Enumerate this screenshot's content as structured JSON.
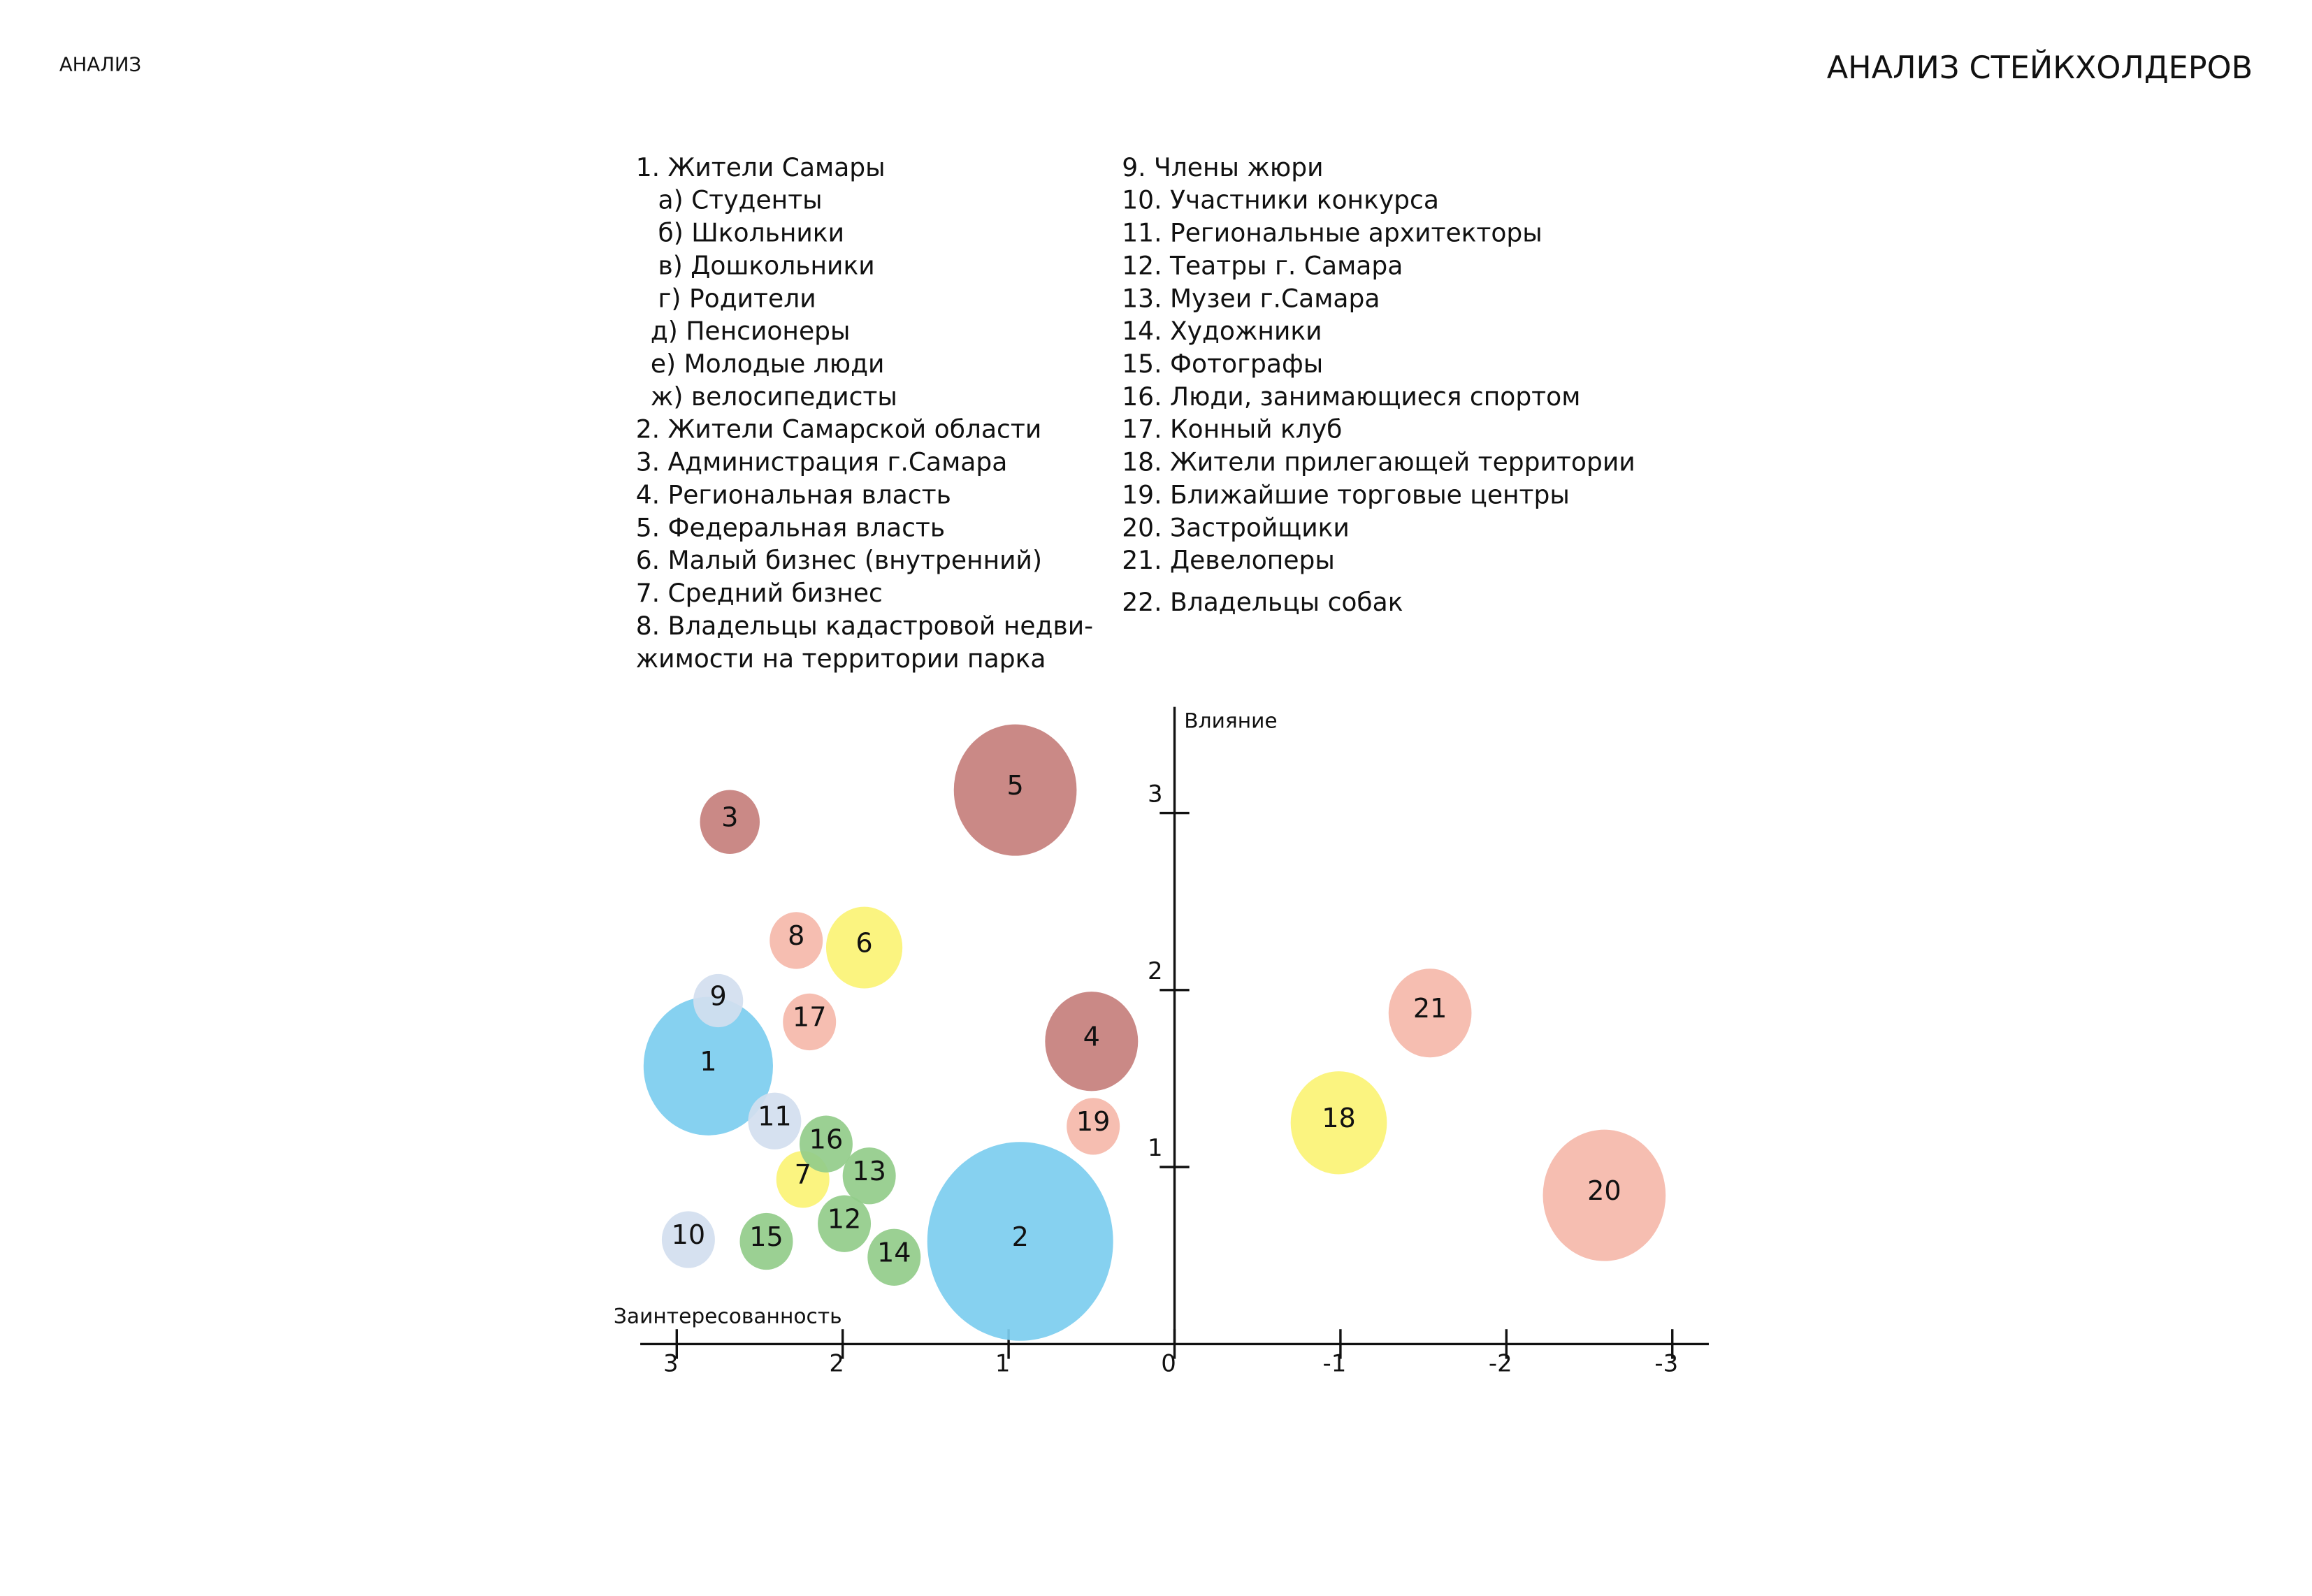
{
  "header": {
    "left": "АНАЛИЗ",
    "right": "АНАЛИЗ СТЕЙКХОЛДЕРОВ"
  },
  "notes": {
    "column1": [
      "1. Жители Самары",
      "а) Студенты",
      "б) Школьники",
      "в) Дошкольники",
      "г) Родители",
      "д) Пенсионеры",
      "е) Молодые люди",
      "ж) велосипедисты",
      "2. Жители Самарской области",
      "3. Администрация г.Самара",
      "4. Региональная власть",
      "5. Федеральная власть",
      "6. Малый бизнес (внутренний)",
      "7. Средний бизнес",
      "8. Владельцы кадастровой недви-",
      "жимости на территории парка"
    ],
    "column2": [
      "9. Члены жюри",
      "10. Участники конкурса",
      "11. Региональные архитекторы",
      "12. Театры г. Самара",
      "13. Музеи г.Самара",
      "14. Художники",
      "15. Фотографы",
      "16. Люди, занимающиеся спортом",
      "17. Конный клуб",
      "18. Жители прилегающей территории",
      "19. Ближайшие торговые центры",
      "20. Застройщики",
      "21. Девелоперы",
      "22. Владельцы собак"
    ]
  },
  "chart_data": {
    "type": "bubble",
    "x_label": "Заинтересованность",
    "y_label": "Влияние",
    "xlim": [
      3.22,
      -3.22
    ],
    "ylim": [
      0,
      3.6
    ],
    "xticks": [
      3,
      2,
      1,
      0,
      -1,
      -2,
      -3
    ],
    "yticks": [
      1,
      2,
      3
    ],
    "points": [
      {
        "label": "1",
        "x": 2.81,
        "y": 1.57,
        "size": 0.39,
        "color": "#7ccdef"
      },
      {
        "label": "2",
        "x": 0.93,
        "y": 0.58,
        "size": 0.56,
        "color": "#7ccdef"
      },
      {
        "label": "3",
        "x": 2.68,
        "y": 2.95,
        "size": 0.18,
        "color": "#c57f7c"
      },
      {
        "label": "4",
        "x": 0.5,
        "y": 1.71,
        "size": 0.28,
        "color": "#c57f7c"
      },
      {
        "label": "5",
        "x": 0.96,
        "y": 3.13,
        "size": 0.37,
        "color": "#c57f7c"
      },
      {
        "label": "6",
        "x": 1.87,
        "y": 2.24,
        "size": 0.23,
        "color": "#fbf375"
      },
      {
        "label": "7",
        "x": 2.24,
        "y": 0.93,
        "size": 0.16,
        "color": "#fbf375"
      },
      {
        "label": "8",
        "x": 2.28,
        "y": 2.28,
        "size": 0.16,
        "color": "#f5b9aa"
      },
      {
        "label": "9",
        "x": 2.75,
        "y": 1.94,
        "size": 0.15,
        "color": "#d2deef"
      },
      {
        "label": "10",
        "x": 2.93,
        "y": 0.59,
        "size": 0.16,
        "color": "#d2deef"
      },
      {
        "label": "11",
        "x": 2.41,
        "y": 1.26,
        "size": 0.16,
        "color": "#d2deef"
      },
      {
        "label": "12",
        "x": 1.99,
        "y": 0.68,
        "size": 0.16,
        "color": "#93cc8a"
      },
      {
        "label": "13",
        "x": 1.84,
        "y": 0.95,
        "size": 0.16,
        "color": "#93cc8a"
      },
      {
        "label": "14",
        "x": 1.69,
        "y": 0.49,
        "size": 0.16,
        "color": "#93cc8a"
      },
      {
        "label": "15",
        "x": 2.46,
        "y": 0.58,
        "size": 0.16,
        "color": "#93cc8a"
      },
      {
        "label": "16",
        "x": 2.1,
        "y": 1.13,
        "size": 0.16,
        "color": "#93cc8a"
      },
      {
        "label": "17",
        "x": 2.2,
        "y": 1.82,
        "size": 0.16,
        "color": "#f5b9aa"
      },
      {
        "label": "18",
        "x": -0.99,
        "y": 1.25,
        "size": 0.29,
        "color": "#fbf375"
      },
      {
        "label": "19",
        "x": 0.49,
        "y": 1.23,
        "size": 0.16,
        "color": "#f5b9aa"
      },
      {
        "label": "20",
        "x": -2.59,
        "y": 0.84,
        "size": 0.37,
        "color": "#f5b9aa"
      },
      {
        "label": "21",
        "x": -1.54,
        "y": 1.87,
        "size": 0.25,
        "color": "#f5b9aa"
      }
    ]
  }
}
